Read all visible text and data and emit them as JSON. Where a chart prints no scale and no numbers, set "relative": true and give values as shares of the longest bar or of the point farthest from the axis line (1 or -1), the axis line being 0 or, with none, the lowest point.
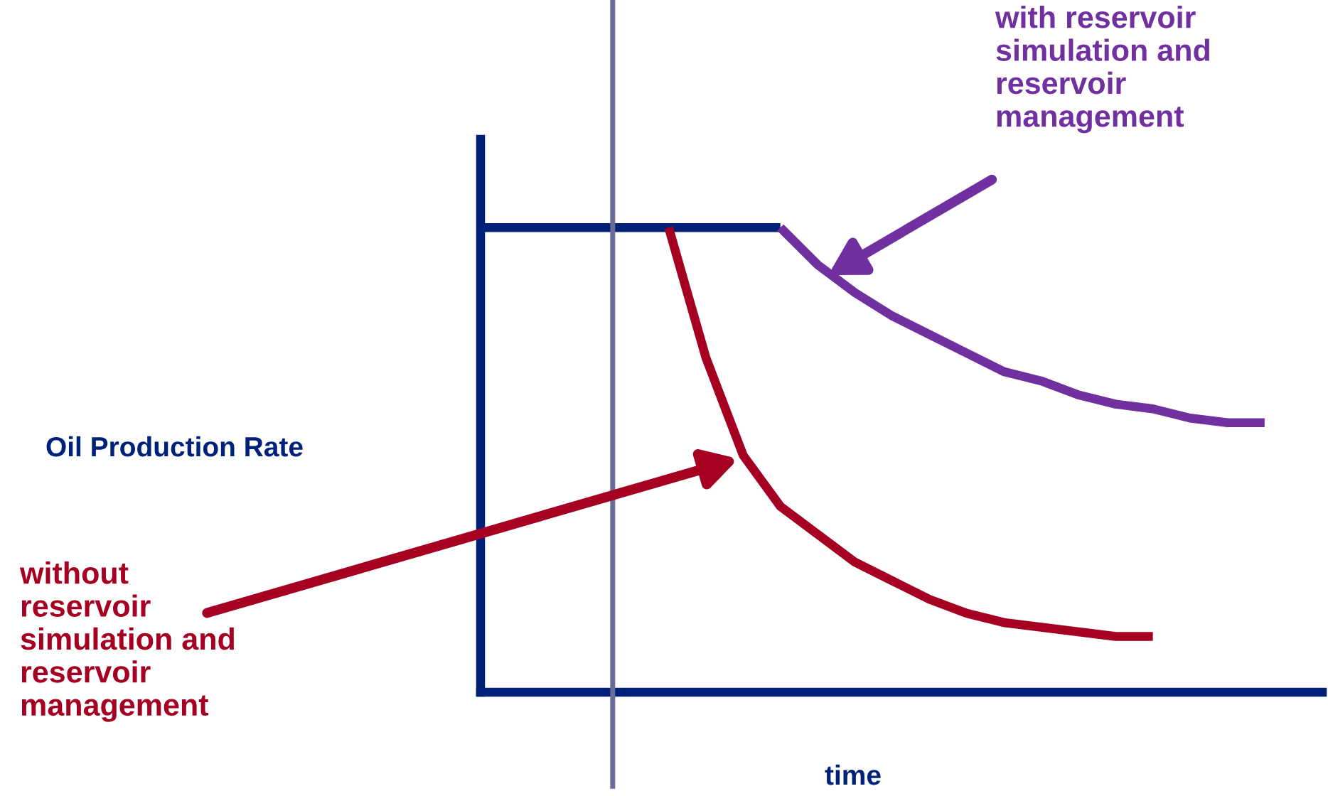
{
  "chart_data": {
    "type": "line",
    "relative": true,
    "xlabel": "time",
    "categories": [
      null,
      null,
      null,
      null,
      null,
      null,
      null,
      null,
      null,
      null,
      null,
      null,
      null,
      null,
      null,
      null,
      null,
      null,
      null,
      null,
      null,
      null
    ],
    "series": [
      {
        "color": "#00217a",
        "values": [
          1,
          1,
          1,
          1,
          1,
          1,
          1,
          1,
          1,
          null,
          null,
          null,
          null,
          null,
          null,
          null,
          null,
          null,
          null,
          null,
          null,
          null
        ]
      },
      {
        "color": "#a50021",
        "values": [
          null,
          null,
          null,
          null,
          null,
          1,
          0.72,
          0.51,
          0.4,
          0.34,
          0.28,
          0.24,
          0.2,
          0.17,
          0.15,
          0.14,
          0.13,
          0.12,
          0.12,
          null,
          null,
          null
        ]
      },
      {
        "color": "#7030a0",
        "values": [
          null,
          null,
          null,
          null,
          null,
          null,
          null,
          null,
          1,
          0.92,
          0.86,
          0.81,
          0.77,
          0.73,
          0.69,
          0.67,
          0.64,
          0.62,
          0.61,
          0.59,
          0.58,
          0.58
        ]
      }
    ],
    "ref_lines": [
      {
        "axis": "y",
        "value": 0,
        "color": "#00217a"
      }
    ],
    "annotations": [
      "Oil Production Rate",
      "with reservoir\nsimulation and\nreservoir\nmanagement",
      "without\nreservoir\nsimulation and\nreservoir\nmanagement"
    ],
    "legend": false,
    "grid": false,
    "marker": "none",
    "line_style": "solid"
  }
}
